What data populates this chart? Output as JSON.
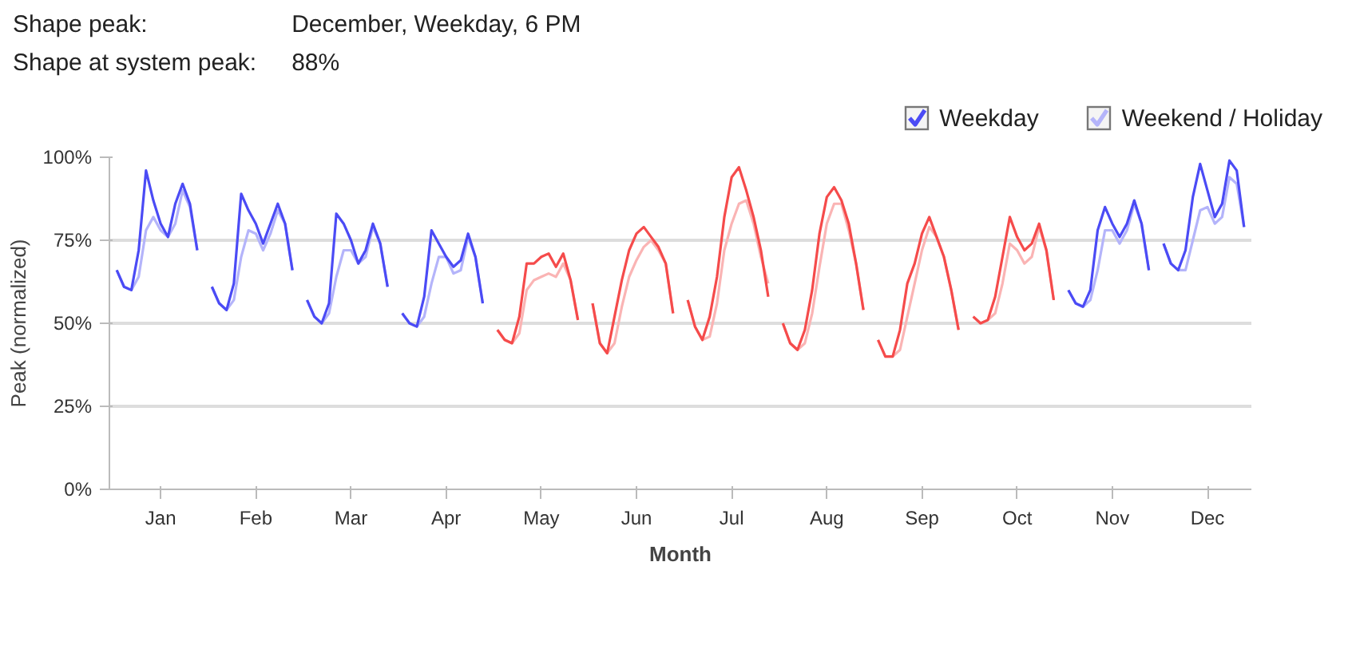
{
  "chart_data": {
    "type": "line",
    "annotations": [
      "Shape peak:",
      "December, Weekday, 6 PM",
      "Shape at system peak:",
      "88%"
    ],
    "xlabel": "Month",
    "ylabel": "Peak (normalized)",
    "ylim": [
      0,
      100
    ],
    "categories": [
      null,
      null,
      null,
      null,
      null,
      null,
      "Jan",
      null,
      null,
      null,
      null,
      null,
      null,
      null,
      null,
      null,
      null,
      null,
      null,
      "Feb",
      null,
      null,
      null,
      null,
      null,
      null,
      null,
      null,
      null,
      null,
      null,
      null,
      "Mar",
      null,
      null,
      null,
      null,
      null,
      null,
      null,
      null,
      null,
      null,
      null,
      null,
      "Apr",
      null,
      null,
      null,
      null,
      null,
      null,
      null,
      null,
      null,
      null,
      null,
      null,
      "May",
      null,
      null,
      null,
      null,
      null,
      null,
      null,
      null,
      null,
      null,
      null,
      null,
      "Jun",
      null,
      null,
      null,
      null,
      null,
      null,
      null,
      null,
      null,
      null,
      null,
      null,
      "Jul",
      null,
      null,
      null,
      null,
      null,
      null,
      null,
      null,
      null,
      null,
      null,
      null,
      "Aug",
      null,
      null,
      null,
      null,
      null,
      null,
      null,
      null,
      null,
      null,
      null,
      null,
      "Sep",
      null,
      null,
      null,
      null,
      null,
      null,
      null,
      null,
      null,
      null,
      null,
      null,
      "Oct",
      null,
      null,
      null,
      null,
      null,
      null,
      null,
      null,
      null,
      null,
      null,
      null,
      "Nov",
      null,
      null,
      null,
      null,
      null,
      null,
      null,
      null,
      null,
      null,
      null,
      null,
      "Dec",
      null,
      null,
      null,
      null,
      null,
      null
    ],
    "yticks": [
      {
        "value": 0,
        "label": "0%"
      },
      {
        "value": 25,
        "label": "25%"
      },
      {
        "value": 50,
        "label": "50%"
      },
      {
        "value": 75,
        "label": "75%"
      },
      {
        "value": 100,
        "label": "100%"
      }
    ],
    "grid": "y",
    "legend": "top right",
    "line_style": "solid",
    "series": [
      {
        "name": "Weekday",
        "color": "#4b4bf5",
        "values": [
          66,
          61,
          60,
          72,
          96,
          87,
          80,
          76,
          86,
          92,
          86,
          72,
          null,
          61,
          56,
          54,
          62,
          89,
          84,
          80,
          74,
          80,
          86,
          80,
          66,
          null,
          57,
          52,
          50,
          56,
          83,
          80,
          75,
          68,
          72,
          80,
          74,
          61,
          null,
          53,
          50,
          49,
          58,
          78,
          74,
          70,
          67,
          69,
          77,
          70,
          56,
          null,
          null,
          null,
          null,
          null,
          null,
          null,
          null,
          null,
          null,
          null,
          null,
          null,
          null,
          null,
          null,
          null,
          null,
          null,
          null,
          null,
          null,
          null,
          null,
          null,
          null,
          null,
          null,
          null,
          null,
          null,
          null,
          null,
          null,
          null,
          null,
          null,
          null,
          null,
          null,
          null,
          null,
          null,
          null,
          null,
          null,
          null,
          null,
          null,
          null,
          null,
          null,
          null,
          null,
          null,
          null,
          null,
          null,
          null,
          null,
          null,
          null,
          null,
          null,
          null,
          null,
          null,
          null,
          null,
          null,
          null,
          null,
          null,
          null,
          null,
          null,
          null,
          null,
          null,
          60,
          56,
          55,
          60,
          78,
          85,
          80,
          76,
          80,
          87,
          80,
          66,
          null,
          74,
          68,
          66,
          72,
          88,
          98,
          90,
          82,
          86,
          99,
          96,
          79,
          null
        ]
      },
      {
        "color": "#f54b4b",
        "values": [
          null,
          null,
          null,
          null,
          null,
          null,
          null,
          null,
          null,
          null,
          null,
          null,
          null,
          null,
          null,
          null,
          null,
          null,
          null,
          null,
          null,
          null,
          null,
          null,
          null,
          null,
          null,
          null,
          null,
          null,
          null,
          null,
          null,
          null,
          null,
          null,
          null,
          null,
          null,
          null,
          null,
          null,
          null,
          null,
          null,
          null,
          null,
          null,
          null,
          null,
          null,
          null,
          48,
          45,
          44,
          52,
          68,
          68,
          70,
          71,
          67,
          71,
          63,
          51,
          null,
          56,
          44,
          41,
          52,
          63,
          72,
          77,
          79,
          76,
          73,
          68,
          53,
          null,
          57,
          49,
          45,
          52,
          64,
          82,
          94,
          97,
          90,
          82,
          72,
          58,
          null,
          50,
          44,
          42,
          48,
          60,
          77,
          88,
          91,
          87,
          80,
          68,
          54,
          null,
          45,
          40,
          40,
          48,
          62,
          68,
          77,
          82,
          76,
          70,
          60,
          48,
          null,
          52,
          50,
          51,
          58,
          70,
          82,
          76,
          72,
          74,
          80,
          72,
          57,
          null,
          null,
          null,
          null,
          null,
          null,
          null,
          null,
          null,
          null,
          null,
          null,
          null,
          null,
          null,
          null,
          null,
          null,
          null,
          null,
          null,
          null,
          null,
          null,
          null,
          null,
          null
        ]
      },
      {
        "name": "Weekend / Holiday",
        "color": "#b4b4fa",
        "values": [
          66,
          61,
          60,
          64,
          78,
          82,
          78,
          76,
          80,
          90,
          85,
          72,
          null,
          61,
          56,
          54,
          57,
          70,
          78,
          77,
          72,
          77,
          84,
          80,
          66,
          null,
          57,
          52,
          50,
          53,
          64,
          72,
          72,
          68,
          70,
          79,
          74,
          61,
          null,
          53,
          50,
          49,
          52,
          62,
          70,
          70,
          65,
          66,
          76,
          70,
          56,
          null,
          null,
          null,
          null,
          null,
          null,
          null,
          null,
          null,
          null,
          null,
          null,
          null,
          null,
          null,
          null,
          null,
          null,
          null,
          null,
          null,
          null,
          null,
          null,
          null,
          null,
          null,
          null,
          null,
          null,
          null,
          null,
          null,
          null,
          null,
          null,
          null,
          null,
          null,
          null,
          null,
          null,
          null,
          null,
          null,
          null,
          null,
          null,
          null,
          null,
          null,
          null,
          null,
          null,
          null,
          null,
          null,
          null,
          null,
          null,
          null,
          null,
          null,
          null,
          null,
          null,
          null,
          null,
          null,
          null,
          null,
          null,
          null,
          null,
          null,
          null,
          null,
          null,
          null,
          60,
          56,
          55,
          57,
          66,
          78,
          78,
          74,
          78,
          86,
          80,
          66,
          null,
          74,
          68,
          66,
          66,
          75,
          84,
          85,
          80,
          82,
          94,
          92,
          79,
          null
        ]
      },
      {
        "color": "#fab4b4",
        "values": [
          null,
          null,
          null,
          null,
          null,
          null,
          null,
          null,
          null,
          null,
          null,
          null,
          null,
          null,
          null,
          null,
          null,
          null,
          null,
          null,
          null,
          null,
          null,
          null,
          null,
          null,
          null,
          null,
          null,
          null,
          null,
          null,
          null,
          null,
          null,
          null,
          null,
          null,
          null,
          null,
          null,
          null,
          null,
          null,
          null,
          null,
          null,
          null,
          null,
          null,
          null,
          null,
          48,
          45,
          44,
          47,
          60,
          63,
          64,
          65,
          64,
          68,
          63,
          51,
          null,
          56,
          44,
          41,
          44,
          55,
          64,
          69,
          73,
          75,
          72,
          68,
          53,
          null,
          57,
          49,
          45,
          46,
          56,
          72,
          80,
          86,
          87,
          80,
          70,
          62,
          null,
          50,
          44,
          42,
          44,
          53,
          67,
          80,
          86,
          86,
          78,
          68,
          54,
          null,
          45,
          40,
          40,
          42,
          52,
          62,
          72,
          79,
          76,
          70,
          60,
          48,
          null,
          52,
          50,
          51,
          53,
          62,
          74,
          72,
          68,
          70,
          79,
          72,
          57,
          null,
          null,
          null,
          null,
          null,
          null,
          null,
          null,
          null,
          null,
          null,
          null,
          null,
          null,
          null,
          null,
          null,
          null,
          null,
          null,
          null,
          null,
          null,
          null,
          null,
          null,
          null
        ]
      }
    ]
  }
}
